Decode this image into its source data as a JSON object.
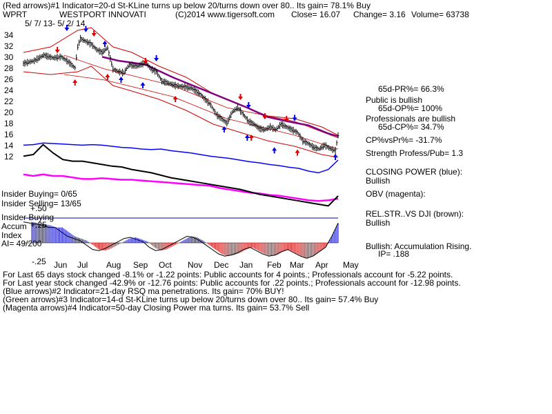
{
  "header": {
    "line1": "(Red arrows)#1 Indicator=20-d St-KLine turns up below 20/turns down over 80.. Its gain= 78.1% Buy",
    "ticker": "WPRT",
    "company": "WESTPORT INNOVATI",
    "copyright": "(C)2014 www.tigersoft.com",
    "close": "Close=  16.07",
    "change": "Change= 3.16",
    "volume": "Volume=  63738",
    "date_range": "5/ 7/ 13-  5/ 2/ 14"
  },
  "right_panel": {
    "pr": "65d-PR%= 66.3%",
    "public": "Public is bullish",
    "op": "65d-OP%= 100%",
    "professionals": "Professionals are bullish",
    "cp": "65d-CP%= 34.7%",
    "cpvspr": "CP%vsPr%= -31.7%",
    "strength": "Strength Profess/Pub= 1.3",
    "closing_power": "CLOSING POWER (blue):",
    "closing_power_status": "Bullish",
    "obv": "OBV (magenta):",
    "relstr": "REL.STR..VS DJI (brown):",
    "relstr_status": "Bullish",
    "accum": "Bullish: Accumulation Rising.",
    "ip": "IP=  .188"
  },
  "left_panel": {
    "insider_buying": "Insider Buying= 0/65",
    "insider_selling": "Insider Selling= 13/65",
    "plus50": "+.50",
    "insider_buying2": "Insider Buying",
    "accum": "Accum",
    "plus25": "+.25",
    "index": "Index",
    "ai": "AI= 49/200",
    "minus25": "-.25"
  },
  "footer": {
    "line1": "For Last 65 days stock changed -8.1% or -1.22 points:  Public accounts for  4 points.;  Professionals account for -5.22 points.",
    "line2": "For Last year stock changed -42.9% or -12.76 points:  Public accounts for  .22 points.;  Professionals account for -12.98 points.",
    "line3": "(Blue arrows)#2 Indicator=21-day RSQ ma penetrations. Its gain= 70% BUY!",
    "line4": "(Green arrows)#3 Indicator=14-d St-KLine turns up below 20/turns down over 80.. Its gain= 57.4% Buy",
    "line5": "(Magenta arrows)#4 Indicator=50-day Closing Power ma turns. Its gain= 53.7% Sell"
  },
  "colors": {
    "price_bars": "#000000",
    "band": "#cc0000",
    "ma50": "#800080",
    "closing_power": "#0000ff",
    "obv": "#ff00ff",
    "relstr": "#000000",
    "accum_pos": "#0000cc",
    "accum_neg": "#cc0000",
    "red_arrow": "#dd0000",
    "blue_arrow": "#0000ee"
  },
  "chart_data": {
    "type": "line",
    "price_axis_ticks": [
      "34",
      "32",
      "30",
      "28",
      "26",
      "24",
      "22",
      "20",
      "18",
      "16",
      "14",
      "12"
    ],
    "ylim": [
      11,
      36
    ],
    "months": [
      "Jun",
      "Jul",
      "Aug",
      "Sep",
      "Oct",
      "Nov",
      "Dec",
      "Jan",
      "Feb",
      "Mar",
      "Apr",
      "May"
    ],
    "close_series": [
      [
        0,
        29
      ],
      [
        8,
        29.5
      ],
      [
        15,
        30.5
      ],
      [
        22,
        30
      ],
      [
        28,
        30.2
      ],
      [
        33,
        29.3
      ],
      [
        38,
        28.2
      ],
      [
        40,
        32
      ],
      [
        42,
        33.5
      ],
      [
        46,
        33
      ],
      [
        50,
        32.5
      ],
      [
        54,
        31.5
      ],
      [
        58,
        31
      ],
      [
        62,
        31.8
      ],
      [
        66,
        28
      ],
      [
        70,
        27.5
      ],
      [
        74,
        27.3
      ],
      [
        78,
        28.8
      ],
      [
        84,
        28.5
      ],
      [
        90,
        29.2
      ],
      [
        94,
        28
      ],
      [
        98,
        27.5
      ],
      [
        102,
        25.8
      ],
      [
        106,
        25.5
      ],
      [
        112,
        25
      ],
      [
        118,
        24.8
      ],
      [
        124,
        24.5
      ],
      [
        130,
        23.5
      ],
      [
        134,
        22.5
      ],
      [
        138,
        21.5
      ],
      [
        142,
        19.8
      ],
      [
        146,
        19
      ],
      [
        150,
        18.2
      ],
      [
        154,
        20.2
      ],
      [
        158,
        21
      ],
      [
        162,
        19.8
      ],
      [
        166,
        18.5
      ],
      [
        170,
        18
      ],
      [
        174,
        17.2
      ],
      [
        178,
        17
      ],
      [
        182,
        17.5
      ],
      [
        186,
        17
      ],
      [
        190,
        18
      ],
      [
        194,
        17.5
      ],
      [
        198,
        17
      ],
      [
        202,
        16.5
      ],
      [
        206,
        15
      ],
      [
        210,
        14.5
      ],
      [
        214,
        13.8
      ],
      [
        218,
        13.5
      ],
      [
        222,
        14.2
      ],
      [
        226,
        13.6
      ],
      [
        230,
        13.2
      ],
      [
        232,
        16
      ]
    ],
    "bands": {
      "upper": [
        [
          0,
          31
        ],
        [
          20,
          32
        ],
        [
          40,
          35
        ],
        [
          50,
          35.5
        ],
        [
          66,
          32
        ],
        [
          80,
          31
        ],
        [
          100,
          28.5
        ],
        [
          120,
          26.5
        ],
        [
          140,
          23.5
        ],
        [
          160,
          21.5
        ],
        [
          180,
          19.5
        ],
        [
          200,
          19
        ],
        [
          220,
          17.5
        ],
        [
          232,
          16
        ]
      ],
      "lower": [
        [
          0,
          27.5
        ],
        [
          20,
          27
        ],
        [
          40,
          27.5
        ],
        [
          50,
          28.5
        ],
        [
          66,
          25
        ],
        [
          80,
          24
        ],
        [
          100,
          22.5
        ],
        [
          120,
          20.5
        ],
        [
          140,
          18
        ],
        [
          160,
          16.5
        ],
        [
          180,
          15
        ],
        [
          200,
          14
        ],
        [
          220,
          12.5
        ],
        [
          232,
          12
        ]
      ],
      "inner_upper": [
        [
          30,
          30.5
        ],
        [
          60,
          28
        ],
        [
          110,
          25
        ],
        [
          150,
          21
        ],
        [
          200,
          18.5
        ],
        [
          232,
          15.5
        ]
      ],
      "inner_lower": [
        [
          30,
          27
        ],
        [
          60,
          26
        ],
        [
          110,
          23
        ],
        [
          150,
          19
        ],
        [
          200,
          16
        ],
        [
          232,
          13.5
        ]
      ]
    },
    "ma50": [
      [
        58,
        30.2
      ],
      [
        70,
        29.5
      ],
      [
        90,
        28.8
      ],
      [
        110,
        26.5
      ],
      [
        130,
        24.5
      ],
      [
        150,
        22.5
      ],
      [
        165,
        21
      ],
      [
        180,
        19.3
      ],
      [
        195,
        18.5
      ],
      [
        210,
        17.8
      ],
      [
        225,
        16.3
      ],
      [
        232,
        15.8
      ]
    ],
    "closing_power": [
      0.62,
      0.63,
      0.66,
      0.65,
      0.64,
      0.63,
      0.62,
      0.63,
      0.62,
      0.6,
      0.58,
      0.57,
      0.55,
      0.54,
      0.55,
      0.52,
      0.5,
      0.48,
      0.45,
      0.42,
      0.4,
      0.38,
      0.35,
      0.32,
      0.3,
      0.27,
      0.25,
      0.22,
      0.2,
      0.15,
      0.12,
      0.18,
      0.35
    ],
    "obv": [
      0.52,
      0.5,
      0.52,
      0.5,
      0.5,
      0.48,
      0.46,
      0.46,
      0.47,
      0.46,
      0.45,
      0.45,
      0.44,
      0.43,
      0.42,
      0.41,
      0.4,
      0.39,
      0.38,
      0.37,
      0.34,
      0.32,
      0.3,
      0.28,
      0.27,
      0.25,
      0.24,
      0.22,
      0.2,
      0.18,
      0.17,
      0.18,
      0.2
    ],
    "relstr": [
      0.78,
      0.8,
      0.92,
      0.82,
      0.74,
      0.72,
      0.72,
      0.7,
      0.68,
      0.66,
      0.65,
      0.62,
      0.6,
      0.58,
      0.55,
      0.52,
      0.5,
      0.48,
      0.46,
      0.44,
      0.42,
      0.4,
      0.38,
      0.35,
      0.32,
      0.3,
      0.28,
      0.26,
      0.24,
      0.22,
      0.2,
      0.18,
      0.3
    ],
    "accum": [
      0.95,
      0.9,
      0.85,
      0.8,
      0.7,
      0.7,
      0.5,
      0.3,
      0.2,
      0.1,
      -0.1,
      -0.3,
      -0.35,
      -0.25,
      -0.1,
      0.05,
      0.2,
      0.25,
      0.15,
      0.05,
      -0.2,
      -0.35,
      -0.3,
      -0.15,
      0.0,
      0.15,
      0.3,
      0.25,
      0.1,
      -0.1,
      -0.3,
      -0.5,
      -0.6,
      -0.55,
      -0.45,
      -0.3,
      -0.2,
      -0.35,
      -0.5,
      -0.6,
      -0.55,
      -0.4,
      -0.3,
      -0.45,
      -0.6,
      -0.7,
      -0.6,
      -0.4,
      -0.2,
      0.3,
      0.9
    ],
    "red_arrows_down": [
      [
        25,
        31
      ],
      [
        52,
        34
      ],
      [
        90,
        29
      ],
      [
        160,
        22.5
      ],
      [
        178,
        19
      ],
      [
        194,
        18.5
      ]
    ],
    "red_arrows_up": [
      [
        38,
        26
      ],
      [
        62,
        27
      ],
      [
        112,
        23
      ],
      [
        168,
        16
      ],
      [
        202,
        13.3
      ]
    ],
    "blue_arrows_down": [
      [
        32,
        35
      ],
      [
        46,
        34.8
      ],
      [
        98,
        29.5
      ],
      [
        166,
        21
      ],
      [
        200,
        18.7
      ]
    ],
    "blue_arrows_up": [
      [
        60,
        33
      ],
      [
        72,
        26.5
      ],
      [
        88,
        25.5
      ],
      [
        148,
        17.5
      ],
      [
        165,
        16
      ],
      [
        185,
        13.7
      ],
      [
        230,
        12.5
      ]
    ]
  }
}
